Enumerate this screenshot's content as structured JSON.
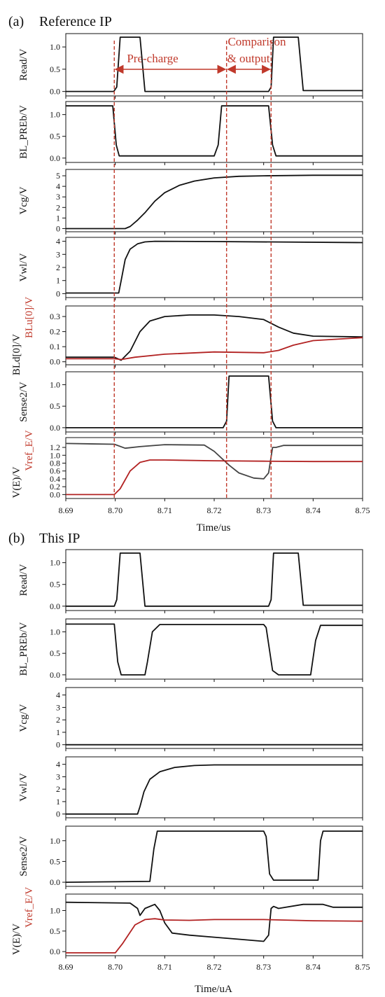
{
  "chart_data": {
    "type": "line",
    "xlim": [
      8.69,
      8.75
    ],
    "xticks": [
      "8.69",
      "8.70",
      "8.71",
      "8.72",
      "8.73",
      "8.74",
      "8.75"
    ],
    "panels": [
      {
        "label": "(a)",
        "title": "Reference IP",
        "xlabel": "Time/us",
        "annotations": {
          "markers_x": [
            8.6998,
            8.7225,
            8.7315
          ],
          "precharge": "Pre-charge",
          "comparison_1": "Comparison",
          "comparison_2": "& output"
        },
        "subplots": [
          {
            "ylabel": "Read/V",
            "ylim": [
              -0.1,
              1.3
            ],
            "yticks": [
              "0.0",
              "0.5",
              "1.0"
            ],
            "series": [
              {
                "color": "#111111",
                "x": [
                  8.69,
                  8.6997,
                  8.7003,
                  8.701,
                  8.705,
                  8.706,
                  8.731,
                  8.7315,
                  8.732,
                  8.737,
                  8.738,
                  8.75
                ],
                "y": [
                  0.0,
                  0.0,
                  0.1,
                  1.22,
                  1.22,
                  0.0,
                  0.0,
                  0.1,
                  1.22,
                  1.22,
                  0.02,
                  0.02
                ]
              }
            ]
          },
          {
            "ylabel": "BL_PREb/V",
            "ylim": [
              -0.1,
              1.3
            ],
            "yticks": [
              "0.0",
              "0.5",
              "1.0"
            ],
            "series": [
              {
                "color": "#111111",
                "x": [
                  8.69,
                  8.6995,
                  8.7002,
                  8.7008,
                  8.72,
                  8.7208,
                  8.7215,
                  8.731,
                  8.7318,
                  8.7325,
                  8.75
                ],
                "y": [
                  1.2,
                  1.2,
                  0.3,
                  0.05,
                  0.05,
                  0.3,
                  1.2,
                  1.2,
                  0.3,
                  0.05,
                  0.05
                ]
              }
            ]
          },
          {
            "ylabel": "Vcg/V",
            "ylim": [
              -0.3,
              5.6
            ],
            "yticks": [
              "0",
              "1",
              "2",
              "3",
              "4",
              "5"
            ],
            "series": [
              {
                "color": "#111111",
                "x": [
                  8.69,
                  8.702,
                  8.703,
                  8.7045,
                  8.706,
                  8.708,
                  8.71,
                  8.713,
                  8.716,
                  8.72,
                  8.725,
                  8.73,
                  8.74,
                  8.75
                ],
                "y": [
                  0.0,
                  0.0,
                  0.2,
                  0.8,
                  1.5,
                  2.6,
                  3.4,
                  4.1,
                  4.5,
                  4.8,
                  4.95,
                  5.0,
                  5.05,
                  5.05
                ]
              }
            ]
          },
          {
            "ylabel": "Vwl/V",
            "ylim": [
              -0.3,
              4.3
            ],
            "yticks": [
              "0",
              "1",
              "2",
              "3",
              "4"
            ],
            "series": [
              {
                "color": "#111111",
                "x": [
                  8.69,
                  8.7007,
                  8.7012,
                  8.702,
                  8.703,
                  8.7045,
                  8.706,
                  8.708,
                  8.72,
                  8.75
                ],
                "y": [
                  0.05,
                  0.05,
                  1.0,
                  2.6,
                  3.4,
                  3.8,
                  3.95,
                  4.0,
                  3.98,
                  3.9
                ]
              }
            ]
          },
          {
            "ylabel": "BLd[0]/V",
            "ylabel2": "BLu[0]/V",
            "ylim": [
              -0.02,
              0.37
            ],
            "yticks": [
              "0.0",
              "0.1",
              "0.2",
              "0.3"
            ],
            "series": [
              {
                "color": "#111111",
                "x": [
                  8.69,
                  8.6998,
                  8.7012,
                  8.703,
                  8.705,
                  8.707,
                  8.71,
                  8.715,
                  8.72,
                  8.725,
                  8.73,
                  8.733,
                  8.736,
                  8.74,
                  8.75
                ],
                "y": [
                  0.03,
                  0.03,
                  0.01,
                  0.07,
                  0.2,
                  0.27,
                  0.3,
                  0.31,
                  0.31,
                  0.3,
                  0.28,
                  0.23,
                  0.19,
                  0.17,
                  0.165
                ]
              },
              {
                "color": "#b22222",
                "x": [
                  8.69,
                  8.6998,
                  8.7012,
                  8.704,
                  8.71,
                  8.72,
                  8.73,
                  8.733,
                  8.736,
                  8.74,
                  8.75
                ],
                "y": [
                  0.02,
                  0.02,
                  0.015,
                  0.03,
                  0.05,
                  0.065,
                  0.06,
                  0.075,
                  0.11,
                  0.14,
                  0.16
                ]
              }
            ]
          },
          {
            "ylabel": "Sense2/V",
            "ylim": [
              -0.1,
              1.3
            ],
            "yticks": [
              "0.0",
              "0.5",
              "1.0"
            ],
            "series": [
              {
                "color": "#111111",
                "x": [
                  8.69,
                  8.7218,
                  8.7225,
                  8.723,
                  8.731,
                  8.7318,
                  8.7325,
                  8.75
                ],
                "y": [
                  0.0,
                  0.0,
                  0.15,
                  1.2,
                  1.2,
                  0.15,
                  0.0,
                  0.0
                ]
              }
            ]
          },
          {
            "ylabel": "V(E)/V",
            "ylabel2": "Vref_E/V",
            "ylim": [
              -0.1,
              1.45
            ],
            "yticks": [
              "0.0",
              "0.2",
              "0.4",
              "0.6",
              "0.8",
              "1.0",
              "1.2"
            ],
            "series": [
              {
                "color": "#444444",
                "x": [
                  8.69,
                  8.6998,
                  8.702,
                  8.705,
                  8.71,
                  8.718,
                  8.72,
                  8.723,
                  8.725,
                  8.728,
                  8.73,
                  8.731,
                  8.7318,
                  8.7325,
                  8.734,
                  8.75
                ],
                "y": [
                  1.3,
                  1.28,
                  1.18,
                  1.22,
                  1.27,
                  1.26,
                  1.1,
                  0.75,
                  0.55,
                  0.42,
                  0.4,
                  0.55,
                  1.2,
                  1.2,
                  1.25,
                  1.25
                ]
              },
              {
                "color": "#b22222",
                "x": [
                  8.69,
                  8.6998,
                  8.701,
                  8.703,
                  8.705,
                  8.707,
                  8.71,
                  8.72,
                  8.73,
                  8.74,
                  8.75
                ],
                "y": [
                  0.0,
                  0.0,
                  0.15,
                  0.6,
                  0.82,
                  0.88,
                  0.88,
                  0.86,
                  0.85,
                  0.84,
                  0.84
                ]
              }
            ]
          }
        ]
      },
      {
        "label": "(b)",
        "title": "This IP",
        "xlabel": "Time/uA",
        "subplots": [
          {
            "ylabel": "Read/V",
            "ylim": [
              -0.1,
              1.3
            ],
            "yticks": [
              "0.0",
              "0.5",
              "1.0"
            ],
            "series": [
              {
                "color": "#111111",
                "x": [
                  8.69,
                  8.6998,
                  8.7003,
                  8.701,
                  8.705,
                  8.706,
                  8.731,
                  8.7315,
                  8.732,
                  8.737,
                  8.738,
                  8.75
                ],
                "y": [
                  0.0,
                  0.0,
                  0.15,
                  1.22,
                  1.22,
                  0.0,
                  0.0,
                  0.15,
                  1.22,
                  1.22,
                  0.02,
                  0.02
                ]
              }
            ]
          },
          {
            "ylabel": "BL_PREb/V",
            "ylim": [
              -0.1,
              1.3
            ],
            "yticks": [
              "0.0",
              "0.5",
              "1.0"
            ],
            "series": [
              {
                "color": "#111111",
                "x": [
                  8.69,
                  8.6998,
                  8.7005,
                  8.7012,
                  8.706,
                  8.7065,
                  8.7075,
                  8.709,
                  8.73,
                  8.7305,
                  8.7318,
                  8.733,
                  8.7395,
                  8.7405,
                  8.7415,
                  8.75
                ],
                "y": [
                  1.18,
                  1.18,
                  0.3,
                  0.0,
                  0.0,
                  0.3,
                  1.0,
                  1.17,
                  1.17,
                  1.1,
                  0.1,
                  0.0,
                  0.0,
                  0.8,
                  1.15,
                  1.15
                ]
              }
            ]
          },
          {
            "ylabel": "Vcg/V",
            "ylim": [
              -0.3,
              4.6
            ],
            "yticks": [
              "0",
              "1",
              "2",
              "3",
              "4"
            ],
            "series": [
              {
                "color": "#111111",
                "x": [
                  8.69,
                  8.75
                ],
                "y": [
                  0.0,
                  0.0
                ]
              }
            ]
          },
          {
            "ylabel": "Vwl/V",
            "ylim": [
              -0.3,
              4.6
            ],
            "yticks": [
              "0",
              "1",
              "2",
              "3",
              "4"
            ],
            "series": [
              {
                "color": "#111111",
                "x": [
                  8.69,
                  8.7045,
                  8.705,
                  8.7058,
                  8.707,
                  8.709,
                  8.712,
                  8.716,
                  8.72,
                  8.75
                ],
                "y": [
                  0.0,
                  0.0,
                  0.6,
                  1.8,
                  2.8,
                  3.4,
                  3.75,
                  3.9,
                  3.95,
                  3.95
                ]
              }
            ]
          },
          {
            "ylabel": "Sense2/V",
            "ylim": [
              -0.1,
              1.35
            ],
            "yticks": [
              "0.0",
              "0.5",
              "1.0"
            ],
            "series": [
              {
                "color": "#111111",
                "x": [
                  8.69,
                  8.707,
                  8.7078,
                  8.7085,
                  8.73,
                  8.7305,
                  8.7312,
                  8.732,
                  8.741,
                  8.7415,
                  8.742,
                  8.75
                ],
                "y": [
                  0.0,
                  0.02,
                  0.8,
                  1.23,
                  1.23,
                  1.1,
                  0.2,
                  0.05,
                  0.05,
                  1.0,
                  1.23,
                  1.23
                ]
              }
            ]
          },
          {
            "ylabel": "V(E)/V",
            "ylabel2": "Vref_E/V",
            "ylim": [
              -0.1,
              1.4
            ],
            "yticks": [
              "0.0",
              "0.5",
              "1.0"
            ],
            "series": [
              {
                "color": "#111111",
                "x": [
                  8.69,
                  8.703,
                  8.7045,
                  8.705,
                  8.706,
                  8.708,
                  8.709,
                  8.71,
                  8.7115,
                  8.715,
                  8.72,
                  8.725,
                  8.73,
                  8.731,
                  8.7315,
                  8.732,
                  8.733,
                  8.738,
                  8.742,
                  8.744,
                  8.75
                ],
                "y": [
                  1.2,
                  1.18,
                  1.05,
                  0.88,
                  1.05,
                  1.15,
                  1.0,
                  0.7,
                  0.45,
                  0.4,
                  0.35,
                  0.3,
                  0.25,
                  0.4,
                  1.05,
                  1.1,
                  1.05,
                  1.15,
                  1.15,
                  1.08,
                  1.08
                ]
              },
              {
                "color": "#b22222",
                "x": [
                  8.69,
                  8.7,
                  8.7015,
                  8.704,
                  8.706,
                  8.708,
                  8.71,
                  8.715,
                  8.72,
                  8.73,
                  8.74,
                  8.75
                ],
                "y": [
                  -0.03,
                  -0.03,
                  0.2,
                  0.65,
                  0.78,
                  0.8,
                  0.77,
                  0.76,
                  0.78,
                  0.78,
                  0.75,
                  0.74
                ]
              }
            ]
          }
        ]
      }
    ]
  }
}
